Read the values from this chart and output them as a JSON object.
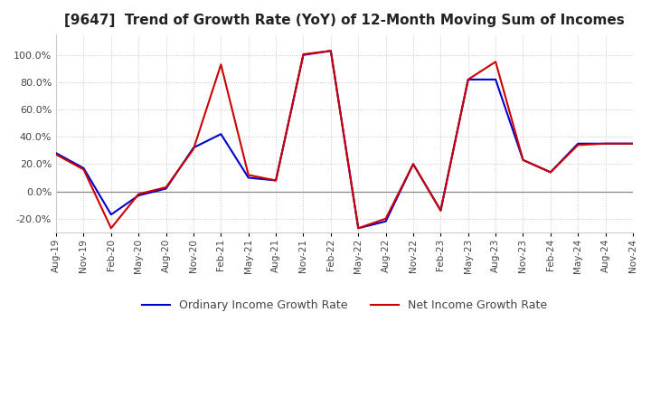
{
  "title": "[9647]  Trend of Growth Rate (YoY) of 12-Month Moving Sum of Incomes",
  "title_fontsize": 11,
  "background_color": "#ffffff",
  "grid_color": "#bbbbbb",
  "ylim": [
    -30,
    115
  ],
  "yticks": [
    -20.0,
    0.0,
    20.0,
    40.0,
    60.0,
    80.0,
    100.0
  ],
  "legend_labels": [
    "Ordinary Income Growth Rate",
    "Net Income Growth Rate"
  ],
  "legend_colors": [
    "#0000cc",
    "#cc0000"
  ],
  "x_labels": [
    "Aug-19",
    "Nov-19",
    "Feb-20",
    "May-20",
    "Aug-20",
    "Nov-20",
    "Feb-21",
    "May-21",
    "Aug-21",
    "Nov-21",
    "Feb-22",
    "May-22",
    "Aug-22",
    "Nov-22",
    "Feb-23",
    "May-23",
    "Aug-23",
    "Nov-23",
    "Feb-24",
    "May-24",
    "Aug-24",
    "Nov-24"
  ],
  "ordinary_income": [
    28.0,
    17.0,
    -17.0,
    -3.0,
    2.0,
    32.0,
    42.0,
    10.0,
    8.0,
    100.0,
    103.0,
    -27.0,
    -22.0,
    20.0,
    -14.0,
    82.0,
    82.0,
    23.0,
    14.0,
    35.0,
    35.0,
    35.0
  ],
  "net_income": [
    27.0,
    16.0,
    -27.0,
    -2.0,
    3.0,
    31.0,
    93.0,
    12.0,
    8.0,
    100.5,
    103.0,
    -27.0,
    -20.0,
    20.0,
    -14.0,
    82.0,
    95.0,
    23.0,
    14.0,
    34.0,
    35.0,
    35.0
  ]
}
